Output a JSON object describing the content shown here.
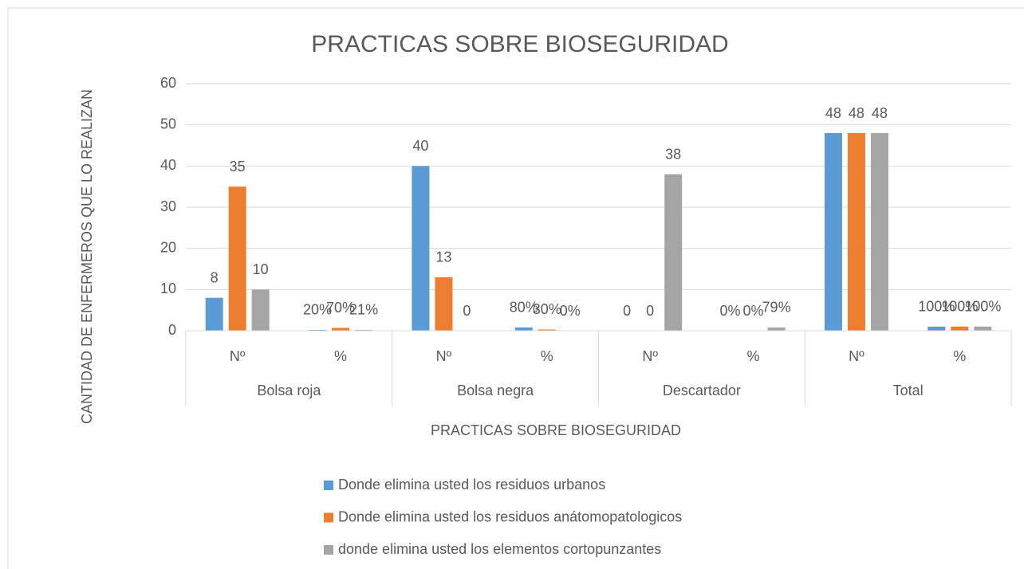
{
  "chart_data": {
    "type": "bar",
    "title": "PRACTICAS SOBRE BIOSEGURIDAD",
    "x_label": "PRACTICAS SOBRE BIOSEGURIDAD",
    "y_label": "CANTIDAD DE ENFERMEROS QUE LO REALIZAN",
    "categories": [
      "Nº",
      "%",
      "Nº",
      "%",
      "Nº",
      "%",
      "Nº",
      "%"
    ],
    "groups": [
      "Bolsa roja",
      "Bolsa negra",
      "Descartador",
      "Total"
    ],
    "series": [
      {
        "name": "Donde elimina usted los residuos urbanos",
        "color": "#5b9bd5",
        "values": [
          8,
          0.2,
          40,
          0.8,
          0,
          0,
          48,
          1
        ],
        "value_labels": [
          "8",
          "20%",
          "40",
          "80%",
          "0",
          "0%",
          "48",
          "100%"
        ]
      },
      {
        "name": "Donde elimina usted los residuos anátomopatologicos",
        "color": "#ed7d31",
        "values": [
          35,
          0.7,
          13,
          0.3,
          0,
          0,
          48,
          1
        ],
        "value_labels": [
          "35",
          "70%",
          "13",
          "30%",
          "0",
          "0%",
          "48",
          "100%"
        ]
      },
      {
        "name": "donde elimina usted los elementos cortopunzantes",
        "color": "#a5a5a5",
        "values": [
          10,
          0.21,
          0,
          0,
          38,
          0.79,
          48,
          1
        ],
        "value_labels": [
          "10",
          "21%",
          "0",
          "0%",
          "38",
          "79%",
          "48",
          "100%"
        ]
      }
    ],
    "ylim": [
      0,
      60
    ],
    "yticks": [
      0,
      10,
      20,
      30,
      40,
      50,
      60
    ],
    "grid": true,
    "legend": "bottom"
  }
}
